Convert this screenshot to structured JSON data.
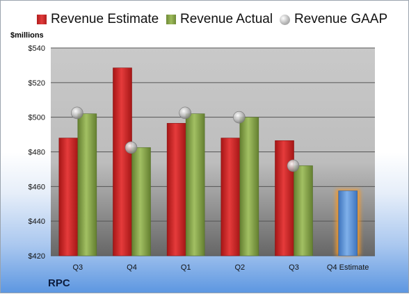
{
  "chart_data": {
    "type": "bar",
    "categories": [
      "Q3",
      "Q4",
      "Q1",
      "Q2",
      "Q3",
      "Q4 Estimate"
    ],
    "series": [
      {
        "name": "Revenue Estimate",
        "values": [
          488,
          528.5,
          496.5,
          488,
          486.5,
          457.5
        ],
        "color": "#d42a2a"
      },
      {
        "name": "Revenue Actual",
        "values": [
          502,
          482.5,
          502,
          500,
          472,
          null
        ],
        "color": "#8eac4d"
      },
      {
        "name": "Revenue GAAP",
        "values": [
          502.5,
          482.5,
          502.5,
          500,
          472,
          null
        ],
        "color": "#b0b0b0",
        "marker": "circle"
      }
    ],
    "forecast_bar_color": "#5e93d6",
    "ylabel": "$millions",
    "ylim": [
      420,
      540
    ],
    "yticks": [
      420,
      440,
      460,
      480,
      500,
      520,
      540
    ],
    "ytick_labels": [
      "$420",
      "$440",
      "$460",
      "$480",
      "$500",
      "$520",
      "$540"
    ],
    "grid": true,
    "legend_position": "top",
    "company": "RPC"
  }
}
